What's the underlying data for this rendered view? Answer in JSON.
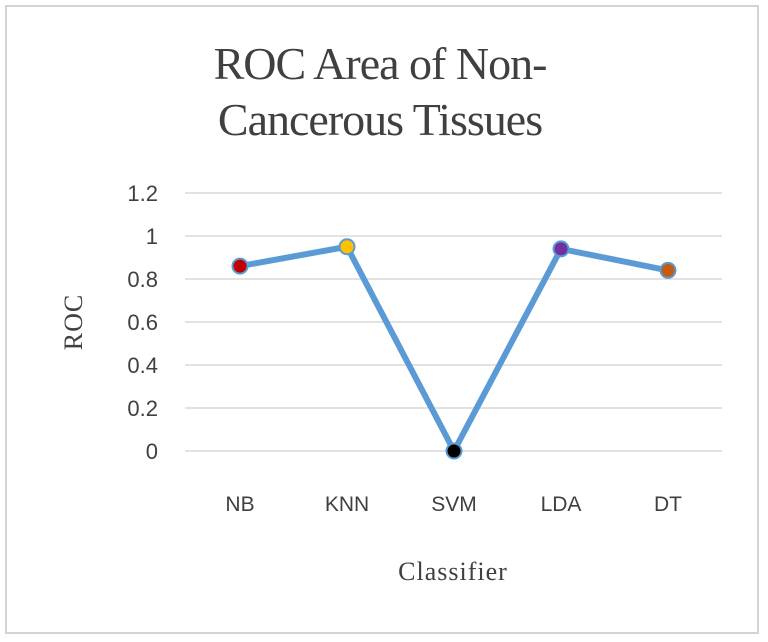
{
  "chart_data": {
    "type": "line",
    "title_lines": [
      "ROC Area of  Non-",
      "Cancerous Tissues"
    ],
    "xlabel": "Classifier",
    "ylabel": "ROC",
    "categories": [
      "NB",
      "KNN",
      "SVM",
      "LDA",
      "DT"
    ],
    "series": [
      {
        "values": [
          0.86,
          0.95,
          0.0,
          0.94,
          0.84
        ],
        "line_color": "#5b9bd5",
        "marker_colors": [
          "#c00000",
          "#ffc000",
          "#000000",
          "#7030a0",
          "#c55a11"
        ]
      }
    ],
    "yticks": [
      "0",
      "0.2",
      "0.4",
      "0.6",
      "0.8",
      "1",
      "1.2"
    ],
    "ylim": [
      0,
      1.2
    ],
    "grid": true,
    "legend": "none"
  }
}
